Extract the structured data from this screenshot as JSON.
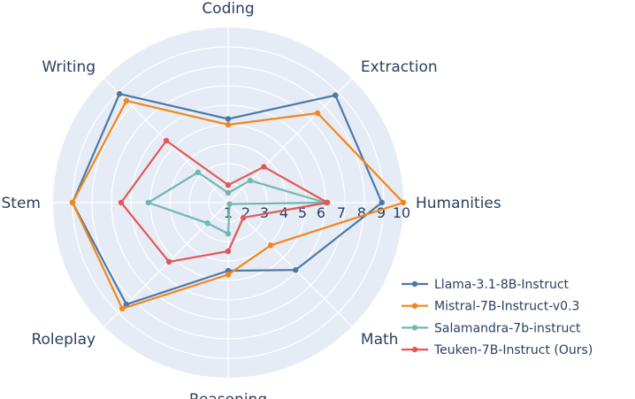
{
  "chart_data": {
    "type": "radar",
    "title": "",
    "categories": [
      "Coding",
      "Extraction",
      "Humanities",
      "Math",
      "Reasoning",
      "Roleplay",
      "Stem",
      "Writing"
    ],
    "radial_range": [
      1,
      10
    ],
    "radial_ticks": [
      1,
      2,
      3,
      4,
      5,
      6,
      7,
      8,
      9,
      10
    ],
    "grid": true,
    "legend_position": "bottom-right",
    "series": [
      {
        "name": "Llama-3.1-8B-Instruct",
        "color": "#4c78a8",
        "values": [
          5.3,
          8.8,
          8.9,
          5.9,
          4.5,
          8.4,
          9.0,
          8.9
        ]
      },
      {
        "name": "Mistral-7B-Instruct-v0.3",
        "color": "#f58518",
        "values": [
          5.0,
          7.5,
          10.0,
          4.1,
          4.7,
          8.7,
          9.0,
          8.4
        ]
      },
      {
        "name": "Salamandra-7b-instruct",
        "color": "#72b7b2",
        "values": [
          1.5,
          2.6,
          6.0,
          1.1,
          2.6,
          2.5,
          5.1,
          3.2
        ]
      },
      {
        "name": "Teuken-7B-Instruct (Ours)",
        "color": "#e45756",
        "values": [
          1.9,
          3.6,
          6.1,
          2.1,
          3.5,
          5.3,
          6.5,
          5.5
        ]
      }
    ]
  }
}
